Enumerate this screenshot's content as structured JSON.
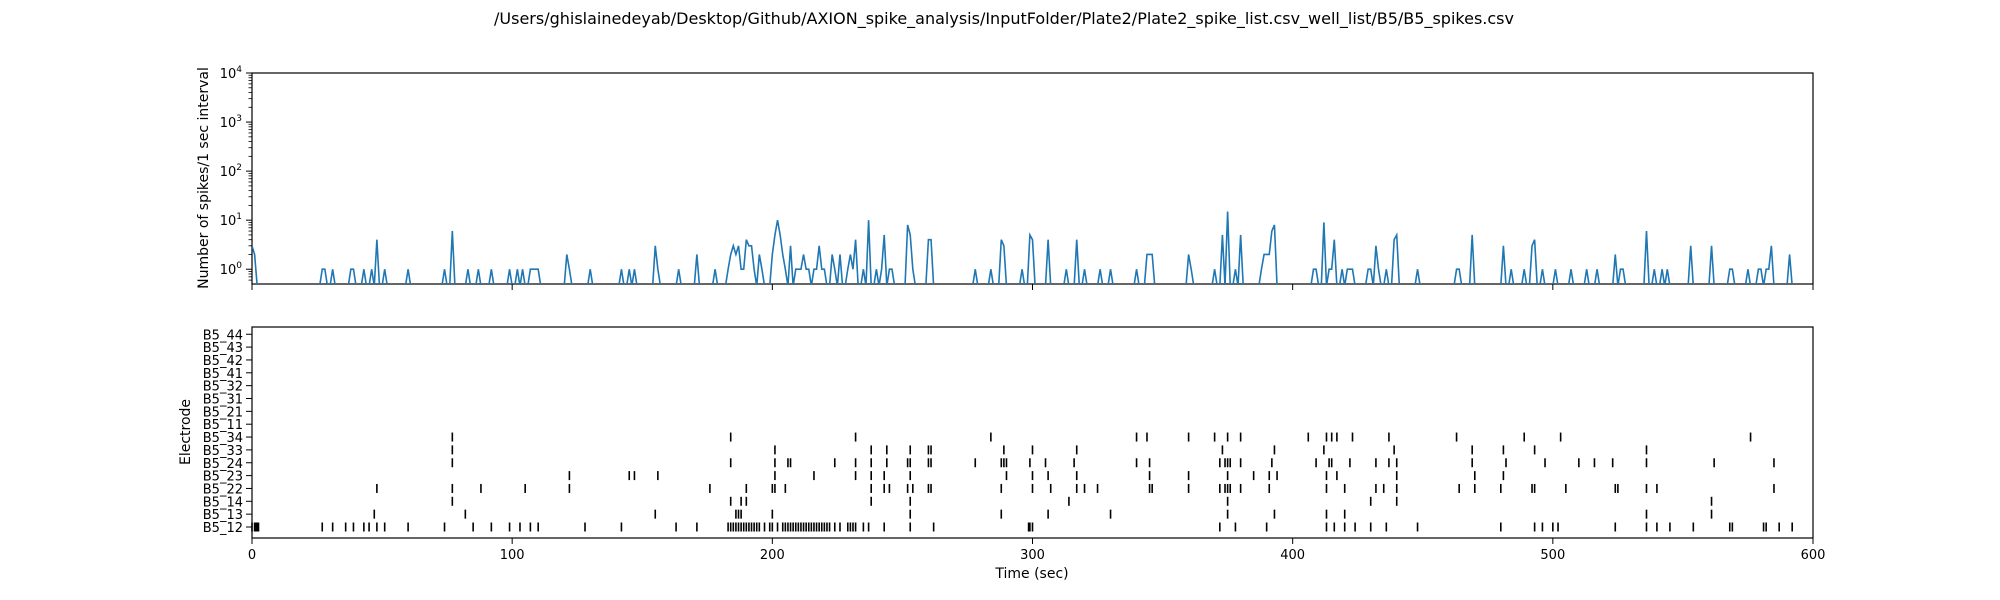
{
  "chart_data": {
    "title": "/Users/ghislainedeyab/Desktop/Github/AXION_spike_analysis/InputFolder/Plate2/Plate2_spike_list.csv_well_list/B5/B5_spikes.csv",
    "panels": [
      {
        "type": "line",
        "ylabel": "Number of spikes/1 sec interval",
        "xlabel": "",
        "yscale": "log",
        "ylim": [
          0.5,
          10000
        ],
        "xlim": [
          0,
          600
        ],
        "y_ticks": [
          1,
          10,
          100,
          1000,
          10000
        ],
        "y_tick_labels": [
          {
            "base": "10",
            "exp": "0"
          },
          {
            "base": "10",
            "exp": "1"
          },
          {
            "base": "10",
            "exp": "2"
          },
          {
            "base": "10",
            "exp": "3"
          },
          {
            "base": "10",
            "exp": "4"
          }
        ],
        "line_color": "#1f77b4",
        "bin_seconds": 1,
        "counts": [
          [
            0,
            3
          ],
          [
            1,
            2
          ],
          [
            27,
            1
          ],
          [
            28,
            1
          ],
          [
            31,
            1
          ],
          [
            38,
            1
          ],
          [
            39,
            1
          ],
          [
            43,
            1
          ],
          [
            46,
            1
          ],
          [
            48,
            4
          ],
          [
            51,
            1
          ],
          [
            60,
            1
          ],
          [
            74,
            1
          ],
          [
            77,
            6
          ],
          [
            83,
            1
          ],
          [
            87,
            1
          ],
          [
            92,
            1
          ],
          [
            99,
            1
          ],
          [
            102,
            1
          ],
          [
            104,
            1
          ],
          [
            107,
            1
          ],
          [
            108,
            1
          ],
          [
            109,
            1
          ],
          [
            110,
            1
          ],
          [
            121,
            2
          ],
          [
            122,
            1
          ],
          [
            130,
            1
          ],
          [
            142,
            1
          ],
          [
            145,
            1
          ],
          [
            147,
            1
          ],
          [
            155,
            3
          ],
          [
            156,
            1
          ],
          [
            164,
            1
          ],
          [
            171,
            2
          ],
          [
            178,
            1
          ],
          [
            183,
            1
          ],
          [
            184,
            2
          ],
          [
            185,
            3
          ],
          [
            186,
            2
          ],
          [
            187,
            3
          ],
          [
            188,
            1
          ],
          [
            189,
            1
          ],
          [
            190,
            4
          ],
          [
            191,
            3
          ],
          [
            192,
            3
          ],
          [
            193,
            1
          ],
          [
            195,
            2
          ],
          [
            196,
            1
          ],
          [
            200,
            2
          ],
          [
            201,
            5
          ],
          [
            202,
            10
          ],
          [
            203,
            5
          ],
          [
            204,
            2
          ],
          [
            205,
            1
          ],
          [
            207,
            3
          ],
          [
            209,
            1
          ],
          [
            210,
            1
          ],
          [
            211,
            1
          ],
          [
            212,
            2
          ],
          [
            213,
            1
          ],
          [
            214,
            1
          ],
          [
            216,
            1
          ],
          [
            217,
            1
          ],
          [
            218,
            3
          ],
          [
            219,
            1
          ],
          [
            220,
            1
          ],
          [
            223,
            2
          ],
          [
            224,
            1
          ],
          [
            226,
            2
          ],
          [
            229,
            1
          ],
          [
            230,
            2
          ],
          [
            231,
            1
          ],
          [
            232,
            4
          ],
          [
            235,
            1
          ],
          [
            237,
            10
          ],
          [
            240,
            1
          ],
          [
            242,
            1
          ],
          [
            243,
            5
          ],
          [
            245,
            1
          ],
          [
            246,
            1
          ],
          [
            252,
            8
          ],
          [
            253,
            5
          ],
          [
            254,
            1
          ],
          [
            260,
            4
          ],
          [
            261,
            4
          ],
          [
            278,
            1
          ],
          [
            284,
            1
          ],
          [
            288,
            4
          ],
          [
            289,
            3
          ],
          [
            296,
            1
          ],
          [
            299,
            5
          ],
          [
            300,
            4
          ],
          [
            306,
            4
          ],
          [
            313,
            1
          ],
          [
            317,
            4
          ],
          [
            320,
            1
          ],
          [
            326,
            1
          ],
          [
            330,
            1
          ],
          [
            340,
            1
          ],
          [
            344,
            2
          ],
          [
            345,
            2
          ],
          [
            346,
            2
          ],
          [
            360,
            2
          ],
          [
            361,
            1
          ],
          [
            370,
            1
          ],
          [
            373,
            5
          ],
          [
            375,
            15
          ],
          [
            378,
            1
          ],
          [
            380,
            5
          ],
          [
            388,
            1
          ],
          [
            389,
            2
          ],
          [
            390,
            2
          ],
          [
            391,
            2
          ],
          [
            392,
            6
          ],
          [
            393,
            8
          ],
          [
            408,
            1
          ],
          [
            409,
            1
          ],
          [
            412,
            9
          ],
          [
            414,
            1
          ],
          [
            415,
            1
          ],
          [
            416,
            4
          ],
          [
            419,
            1
          ],
          [
            421,
            1
          ],
          [
            422,
            1
          ],
          [
            423,
            1
          ],
          [
            429,
            1
          ],
          [
            430,
            1
          ],
          [
            432,
            3
          ],
          [
            433,
            1
          ],
          [
            436,
            1
          ],
          [
            439,
            4
          ],
          [
            440,
            5
          ],
          [
            448,
            1
          ],
          [
            463,
            1
          ],
          [
            464,
            1
          ],
          [
            469,
            5
          ],
          [
            481,
            3
          ],
          [
            484,
            1
          ],
          [
            489,
            1
          ],
          [
            492,
            3
          ],
          [
            493,
            4
          ],
          [
            496,
            1
          ],
          [
            501,
            1
          ],
          [
            507,
            1
          ],
          [
            513,
            1
          ],
          [
            517,
            1
          ],
          [
            524,
            2
          ],
          [
            526,
            1
          ],
          [
            527,
            1
          ],
          [
            536,
            6
          ],
          [
            539,
            1
          ],
          [
            542,
            1
          ],
          [
            544,
            1
          ],
          [
            553,
            3
          ],
          [
            561,
            3
          ],
          [
            568,
            1
          ],
          [
            569,
            1
          ],
          [
            575,
            1
          ],
          [
            579,
            1
          ],
          [
            580,
            1
          ],
          [
            582,
            1
          ],
          [
            583,
            1
          ],
          [
            584,
            3
          ],
          [
            591,
            2
          ]
        ]
      },
      {
        "type": "raster",
        "ylabel": "Electrode",
        "xlabel": "Time (sec)",
        "xlim": [
          0,
          600
        ],
        "x_ticks": [
          0,
          100,
          200,
          300,
          400,
          500,
          600
        ],
        "x_tick_labels": [
          "0",
          "100",
          "200",
          "300",
          "400",
          "500",
          "600"
        ],
        "electrodes": [
          "B5_12",
          "B5_13",
          "B5_14",
          "B5_22",
          "B5_23",
          "B5_24",
          "B5_33",
          "B5_34",
          "B5_11",
          "B5_21",
          "B5_31",
          "B5_32",
          "B5_41",
          "B5_42",
          "B5_43",
          "B5_44"
        ],
        "spikes": [
          [
            0,
            1,
            1.5,
            2,
            2.5,
            27,
            31,
            36,
            39,
            43,
            45,
            48,
            51,
            60,
            74,
            85,
            92,
            99,
            103,
            107,
            110,
            128,
            142,
            163,
            171,
            183,
            184,
            185,
            186,
            187,
            188,
            189,
            190,
            191,
            192,
            193,
            194,
            195,
            197,
            199,
            200,
            202,
            204,
            205,
            206,
            207,
            208,
            209,
            210,
            211,
            212,
            213,
            214,
            215,
            216,
            217,
            218,
            219,
            220,
            221,
            222,
            224,
            226,
            229,
            230,
            231,
            232,
            235,
            237,
            243,
            253,
            262,
            298.5,
            299,
            300,
            372,
            378,
            390,
            413,
            416,
            420,
            424,
            430,
            436,
            448,
            480,
            493,
            496,
            500,
            502,
            524,
            536,
            540,
            545,
            554,
            568,
            569,
            581,
            582,
            587,
            592
          ],
          [
            47,
            82,
            155,
            186,
            187,
            188,
            200,
            253,
            288,
            306,
            330,
            375,
            393,
            413,
            420,
            536,
            561
          ],
          [
            77,
            184,
            188,
            190,
            238,
            253,
            314,
            375,
            430,
            440,
            561
          ],
          [
            48,
            77,
            88,
            105,
            122,
            176,
            190,
            200,
            201,
            205,
            238,
            243,
            245,
            252,
            254,
            260,
            261,
            288,
            300,
            307,
            317,
            320,
            325,
            345,
            346,
            360,
            372,
            374,
            375,
            376,
            380,
            391,
            413,
            420,
            432,
            435,
            440,
            464,
            470,
            480,
            492,
            493,
            505,
            524,
            525,
            536,
            540,
            585
          ],
          [
            122,
            145,
            147,
            156,
            201,
            216,
            232,
            238,
            243,
            253,
            290,
            300,
            306,
            317,
            345,
            360,
            375,
            385,
            391,
            394,
            413,
            417,
            440,
            470,
            481
          ],
          [
            77,
            184,
            201,
            206,
            207,
            224,
            232,
            238,
            244,
            252,
            253,
            260,
            261,
            278,
            288,
            289,
            290,
            299,
            305,
            316,
            340,
            345,
            372,
            374,
            375,
            376,
            380,
            392,
            409,
            414,
            415,
            422,
            432,
            437,
            440,
            469,
            482,
            497,
            510,
            516,
            523,
            536,
            562,
            585
          ],
          [
            77,
            201,
            238,
            244,
            253,
            260,
            261,
            289,
            300,
            317,
            373,
            393,
            412,
            439,
            469,
            481,
            493,
            536
          ],
          [
            77,
            184,
            232,
            284,
            340,
            344,
            360,
            370,
            375,
            380,
            406,
            413,
            415,
            417,
            423,
            437,
            463,
            489,
            503,
            576
          ],
          [],
          [],
          [],
          [],
          [],
          [],
          [],
          []
        ]
      }
    ]
  }
}
